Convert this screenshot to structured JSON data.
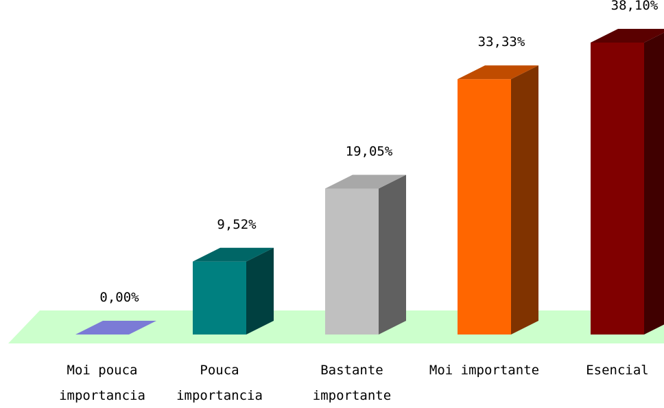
{
  "chart_data": {
    "type": "bar",
    "style": "3d-column",
    "categories": [
      [
        "Moi pouca",
        "importancia"
      ],
      [
        "Pouca",
        "importancia"
      ],
      [
        "Bastante",
        "importante"
      ],
      [
        "Moi importante"
      ],
      [
        "Esencial"
      ]
    ],
    "values": [
      0.0,
      9.52,
      19.05,
      33.33,
      38.1
    ],
    "value_labels": [
      "0,00%",
      "9,52%",
      "19,05%",
      "33,33%",
      "38,10%"
    ],
    "unit": "%",
    "colors": {
      "bars": [
        {
          "front": "#7b7bd6",
          "top": "#8b8bff",
          "side": "#5656a8"
        },
        {
          "front": "#008080",
          "top": "#006666",
          "side": "#004040"
        },
        {
          "front": "#c0c0c0",
          "top": "#a8a8a8",
          "side": "#606060"
        },
        {
          "front": "#ff6600",
          "top": "#c04c00",
          "side": "#803300"
        },
        {
          "front": "#800000",
          "top": "#5a0000",
          "side": "#400000"
        }
      ],
      "floor": "#ccffcc",
      "background": "#ffffff"
    },
    "grid": false,
    "legend": "none"
  }
}
